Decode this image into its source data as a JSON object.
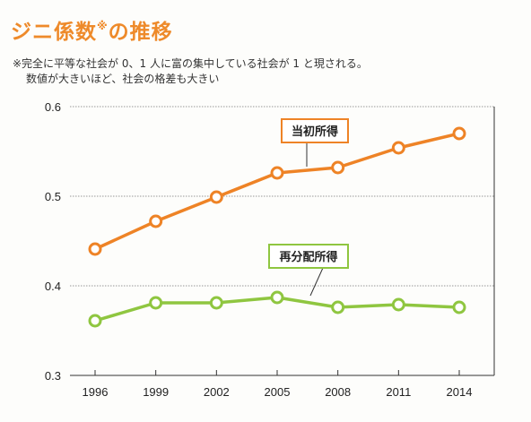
{
  "title": {
    "main": "ジニ係数",
    "mark": "※",
    "tail": "の推移"
  },
  "note": {
    "line1": "※完全に平等な社会が 0、1 人に富の集中している社会が 1 と現される。",
    "line2": "数値が大きいほど、社会の格差も大きい"
  },
  "colors": {
    "initial": "#ee8326",
    "redistributed": "#8fc640",
    "title": "#ee8a2a"
  },
  "chart_data": {
    "type": "line",
    "categories": [
      "1996",
      "1999",
      "2002",
      "2005",
      "2008",
      "2011",
      "2014"
    ],
    "ylim": [
      0.3,
      0.6
    ],
    "yticks": [
      "0.6",
      "0.5",
      "0.4",
      "0.3"
    ],
    "grid": true,
    "series": [
      {
        "name": "当初所得",
        "values": [
          0.441,
          0.472,
          0.499,
          0.526,
          0.532,
          0.554,
          0.57
        ]
      },
      {
        "name": "再分配所得",
        "values": [
          0.361,
          0.381,
          0.381,
          0.387,
          0.376,
          0.379,
          0.376
        ]
      }
    ]
  }
}
